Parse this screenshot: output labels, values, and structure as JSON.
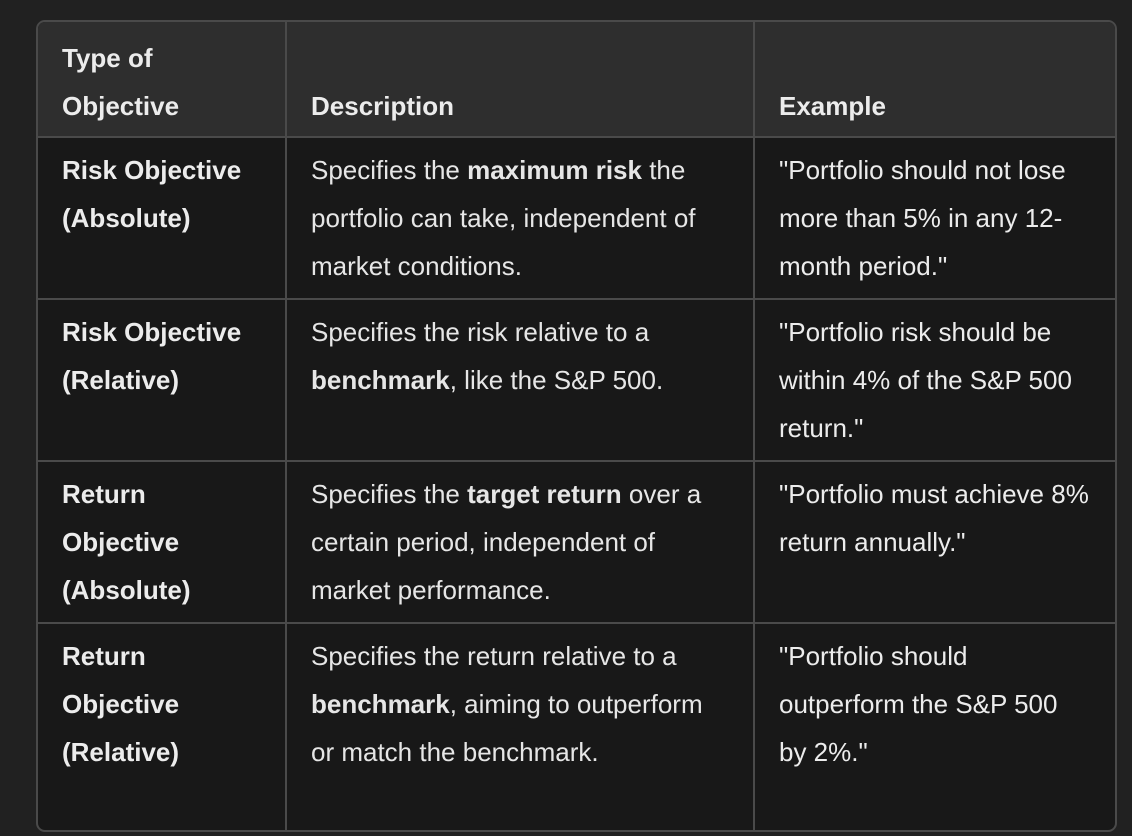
{
  "table": {
    "headers": [
      "Type of Objective",
      "Description",
      "Example"
    ],
    "rows": [
      {
        "type": "Risk Objective (Absolute)",
        "desc_pre": "Specifies the ",
        "desc_bold": "maximum risk",
        "desc_post": " the portfolio can take, independent of market conditions.",
        "example": "\"Portfolio should not lose more than 5% in any 12-month period.\""
      },
      {
        "type": "Risk Objective (Relative)",
        "desc_pre": "Specifies the risk relative to a ",
        "desc_bold": "benchmark",
        "desc_post": ", like the S&P 500.",
        "example": "\"Portfolio risk should be within 4% of the S&P 500 return.\""
      },
      {
        "type": "Return Objective (Absolute)",
        "desc_pre": "Specifies the ",
        "desc_bold": "target return",
        "desc_post": " over a certain period, independent of market performance.",
        "example": "\"Portfolio must achieve 8% return annually.\""
      },
      {
        "type": "Return Objective (Relative)",
        "desc_pre": "Specifies the return relative to a ",
        "desc_bold": "benchmark",
        "desc_post": ", aiming to outperform or match the benchmark.",
        "example": "\"Portfolio should outperform the S&P 500 by 2%.\""
      }
    ]
  }
}
